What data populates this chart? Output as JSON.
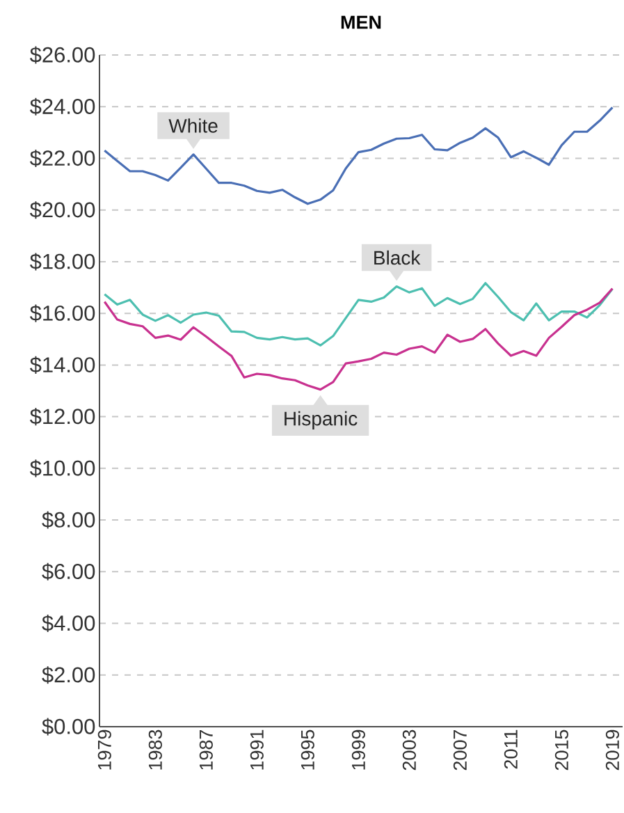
{
  "chart_data": {
    "type": "line",
    "title": "MEN",
    "x": [
      1979,
      1980,
      1981,
      1982,
      1983,
      1984,
      1985,
      1986,
      1987,
      1988,
      1989,
      1990,
      1991,
      1992,
      1993,
      1994,
      1995,
      1996,
      1997,
      1998,
      1999,
      2000,
      2001,
      2002,
      2003,
      2004,
      2005,
      2006,
      2007,
      2008,
      2009,
      2010,
      2011,
      2012,
      2013,
      2014,
      2015,
      2016,
      2017,
      2018,
      2019
    ],
    "xlim": [
      1978.6,
      2019.8
    ],
    "xticks": [
      1979,
      1983,
      1987,
      1991,
      1995,
      1999,
      2003,
      2007,
      2011,
      2015,
      2019
    ],
    "ylim": [
      0,
      26
    ],
    "yticks": [
      {
        "value": 0,
        "label": "$0.00"
      },
      {
        "value": 2,
        "label": "$2.00"
      },
      {
        "value": 4,
        "label": "$4.00"
      },
      {
        "value": 6,
        "label": "$6.00"
      },
      {
        "value": 8,
        "label": "$8.00"
      },
      {
        "value": 10,
        "label": "$10.00"
      },
      {
        "value": 12,
        "label": "$12.00"
      },
      {
        "value": 14,
        "label": "$14.00"
      },
      {
        "value": 16,
        "label": "$16.00"
      },
      {
        "value": 18,
        "label": "$18.00"
      },
      {
        "value": 20,
        "label": "$20.00"
      },
      {
        "value": 22,
        "label": "$22.00"
      },
      {
        "value": 24,
        "label": "$24.00"
      },
      {
        "value": 26,
        "label": "$26.00"
      }
    ],
    "grid": "y",
    "series": [
      {
        "name": "White",
        "color": "#4a6fb5",
        "values": [
          22.3,
          21.9,
          21.5,
          21.5,
          21.35,
          21.14,
          21.64,
          22.15,
          21.6,
          21.05,
          21.05,
          20.94,
          20.74,
          20.67,
          20.78,
          20.49,
          20.24,
          20.4,
          20.76,
          21.61,
          22.24,
          22.33,
          22.57,
          22.76,
          22.78,
          22.91,
          22.35,
          22.31,
          22.6,
          22.8,
          23.16,
          22.8,
          22.04,
          22.27,
          22.02,
          21.75,
          22.51,
          23.03,
          23.03,
          23.46,
          23.97
        ]
      },
      {
        "name": "Black",
        "color": "#4dbfb0",
        "values": [
          16.74,
          16.34,
          16.52,
          15.95,
          15.71,
          15.93,
          15.64,
          15.95,
          16.03,
          15.91,
          15.3,
          15.28,
          15.05,
          14.99,
          15.08,
          14.99,
          15.03,
          14.76,
          15.12,
          15.82,
          16.52,
          16.45,
          16.61,
          17.04,
          16.81,
          16.97,
          16.29,
          16.59,
          16.36,
          16.56,
          17.17,
          16.63,
          16.05,
          15.73,
          16.38,
          15.73,
          16.07,
          16.07,
          15.84,
          16.32,
          16.95
        ]
      },
      {
        "name": "Hispanic",
        "color": "#c8318f",
        "values": [
          16.45,
          15.76,
          15.59,
          15.5,
          15.05,
          15.14,
          14.98,
          15.46,
          15.1,
          14.72,
          14.35,
          13.52,
          13.66,
          13.61,
          13.48,
          13.41,
          13.21,
          13.05,
          13.34,
          14.06,
          14.14,
          14.24,
          14.48,
          14.4,
          14.63,
          14.72,
          14.48,
          15.17,
          14.9,
          15.01,
          15.39,
          14.83,
          14.36,
          14.54,
          14.36,
          15.05,
          15.48,
          15.93,
          16.14,
          16.41,
          16.96
        ]
      }
    ]
  }
}
